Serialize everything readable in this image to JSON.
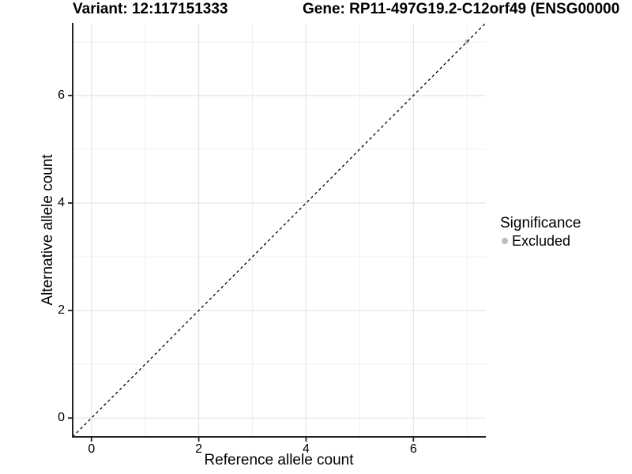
{
  "chart_data": {
    "type": "scatter",
    "title_left": "Variant: 12:117151333",
    "title_right": "Gene: RP11-497G19.2-C12orf49 (ENSG00000",
    "xlabel": "Reference allele count",
    "ylabel": "Alternative allele count",
    "xlim": [
      -0.35,
      7.35
    ],
    "ylim": [
      -0.35,
      7.35
    ],
    "xticks": [
      0,
      2,
      4,
      6
    ],
    "yticks": [
      0,
      2,
      4,
      6
    ],
    "xminor": [
      1,
      3,
      5,
      7
    ],
    "yminor": [
      1,
      3,
      5,
      7
    ],
    "grid": "major and minor gridlines, white panel background",
    "reference_line": {
      "type": "identity y=x",
      "style": "dashed",
      "color": "#000000"
    },
    "series": [
      {
        "name": "Excluded",
        "color": "#bebebe",
        "points": [
          {
            "x": 7,
            "y": 7
          }
        ]
      }
    ],
    "legend": {
      "title": "Significance",
      "position": "right",
      "items": [
        {
          "label": "Excluded",
          "color": "#bebebe"
        }
      ]
    }
  },
  "colors": {
    "background": "#ffffff",
    "grid_major": "#e5e5e5",
    "grid_minor": "#f0f0f0",
    "axis_line": "#222222",
    "tick_mark": "#222222",
    "text": "#000000",
    "dashed_line": "#000000",
    "point_excluded": "#bebebe"
  }
}
